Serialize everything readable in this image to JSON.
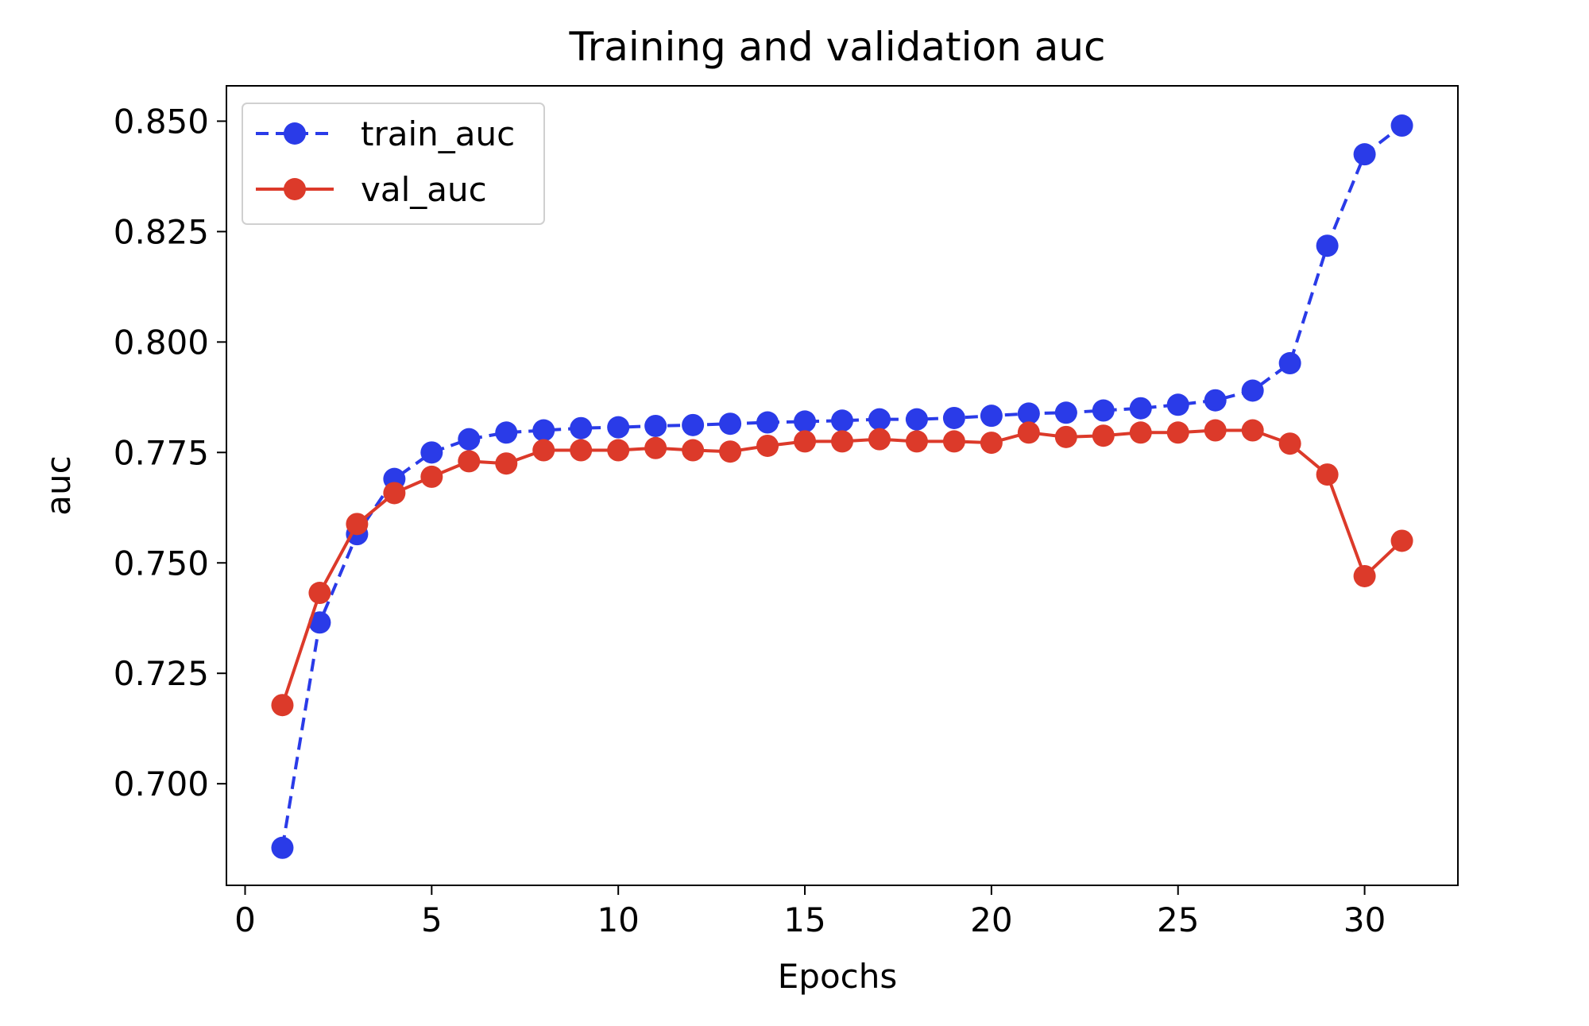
{
  "chart_data": {
    "type": "line",
    "title": "Training and validation auc",
    "xlabel": "Epochs",
    "ylabel": "auc",
    "xlim": [
      -0.5,
      32.5
    ],
    "ylim": [
      0.677,
      0.858
    ],
    "x_ticks": [
      0,
      5,
      10,
      15,
      20,
      25,
      30
    ],
    "y_ticks": [
      0.7,
      0.725,
      0.75,
      0.775,
      0.8,
      0.825,
      0.85
    ],
    "x_tick_labels": [
      "0",
      "5",
      "10",
      "15",
      "20",
      "25",
      "30"
    ],
    "y_tick_labels": [
      "0.700",
      "0.725",
      "0.750",
      "0.775",
      "0.800",
      "0.825",
      "0.850"
    ],
    "grid": false,
    "legend_position": "upper-left",
    "x": [
      1,
      2,
      3,
      4,
      5,
      6,
      7,
      8,
      9,
      10,
      11,
      12,
      13,
      14,
      15,
      16,
      17,
      18,
      19,
      20,
      21,
      22,
      23,
      24,
      25,
      26,
      27,
      28,
      29,
      30,
      31
    ],
    "series": [
      {
        "name": "train_auc",
        "color": "#2a3be8",
        "line_style": "dashed",
        "marker": "circle",
        "values": [
          0.6855,
          0.7365,
          0.7565,
          0.769,
          0.775,
          0.778,
          0.7795,
          0.78,
          0.7805,
          0.7807,
          0.781,
          0.7812,
          0.7815,
          0.7818,
          0.782,
          0.7822,
          0.7825,
          0.7825,
          0.7828,
          0.7833,
          0.7838,
          0.784,
          0.7845,
          0.785,
          0.7858,
          0.7868,
          0.789,
          0.7952,
          0.8218,
          0.8425,
          0.849
        ]
      },
      {
        "name": "val_auc",
        "color": "#dc3a2a",
        "line_style": "solid",
        "marker": "circle",
        "values": [
          0.7178,
          0.7432,
          0.7588,
          0.7658,
          0.7695,
          0.773,
          0.7725,
          0.7755,
          0.7755,
          0.7755,
          0.776,
          0.7755,
          0.7752,
          0.7765,
          0.7775,
          0.7775,
          0.778,
          0.7775,
          0.7775,
          0.7772,
          0.7795,
          0.7785,
          0.7788,
          0.7795,
          0.7795,
          0.78,
          0.78,
          0.777,
          0.77,
          0.747,
          0.755
        ]
      }
    ]
  }
}
